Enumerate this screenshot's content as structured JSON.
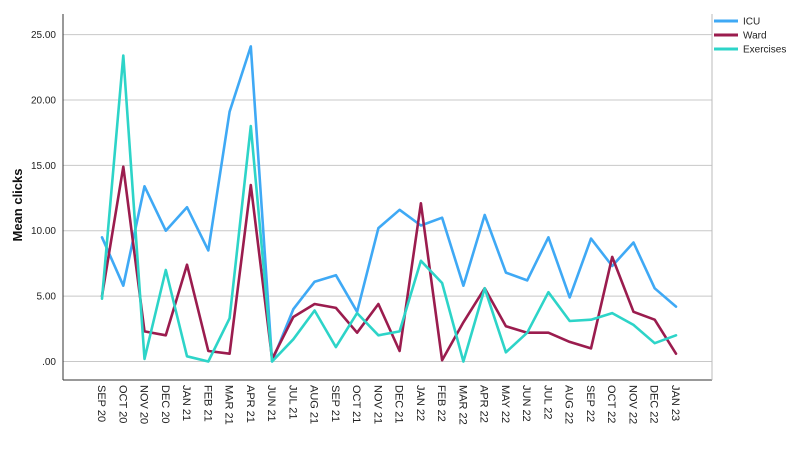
{
  "chart_data": {
    "type": "line",
    "ylabel": "Mean clicks",
    "xlabel": "",
    "ylim": [
      0,
      25
    ],
    "yticks": [
      0,
      5,
      10,
      15,
      20,
      25
    ],
    "ytick_labels": [
      ".00",
      "5.00",
      "10.00",
      "15.00",
      "20.00",
      "25.00"
    ],
    "grid": "horizontal",
    "legend_position": "top-right",
    "categories": [
      "SEP 20",
      "OCT 20",
      "NOV 20",
      "DEC 20",
      "JAN 21",
      "FEB 21",
      "MAR 21",
      "APR 21",
      "JUN 21",
      "JUL 21",
      "AUG 21",
      "SEP 21",
      "OCT 21",
      "NOV 21",
      "DEC 21",
      "JAN 22",
      "FEB 22",
      "MAR 22",
      "APR 22",
      "MAY 22",
      "JUN 22",
      "JUL 22",
      "AUG 22",
      "SEP 22",
      "OCT 22",
      "NOV 22",
      "DEC 22",
      "JAN 23"
    ],
    "series": [
      {
        "name": "ICU",
        "color": "#3fa9f5",
        "values": [
          9.5,
          5.8,
          13.4,
          10.0,
          11.8,
          8.5,
          19.1,
          24.1,
          0.0,
          4.0,
          6.1,
          6.6,
          3.8,
          10.2,
          11.6,
          10.4,
          11.0,
          5.8,
          11.2,
          6.8,
          6.2,
          9.5,
          4.9,
          9.4,
          7.3,
          9.1,
          5.6,
          4.2
        ]
      },
      {
        "name": "Ward",
        "color": "#9b1c4e",
        "values": [
          5.0,
          14.9,
          2.3,
          2.0,
          7.4,
          0.8,
          0.6,
          13.5,
          0.2,
          3.4,
          4.4,
          4.1,
          2.2,
          4.4,
          0.8,
          12.1,
          0.1,
          3.0,
          5.6,
          2.7,
          2.2,
          2.2,
          1.5,
          1.0,
          8.0,
          3.8,
          3.2,
          0.6
        ]
      },
      {
        "name": "Exercises",
        "color": "#2dd4c8",
        "values": [
          4.8,
          23.4,
          0.2,
          7.0,
          0.4,
          0.0,
          3.3,
          18.0,
          0.0,
          1.7,
          3.9,
          1.1,
          3.7,
          2.0,
          2.3,
          7.7,
          6.0,
          0.0,
          5.6,
          0.7,
          2.2,
          5.3,
          3.1,
          3.2,
          3.7,
          2.8,
          1.4,
          2.0
        ]
      }
    ]
  }
}
